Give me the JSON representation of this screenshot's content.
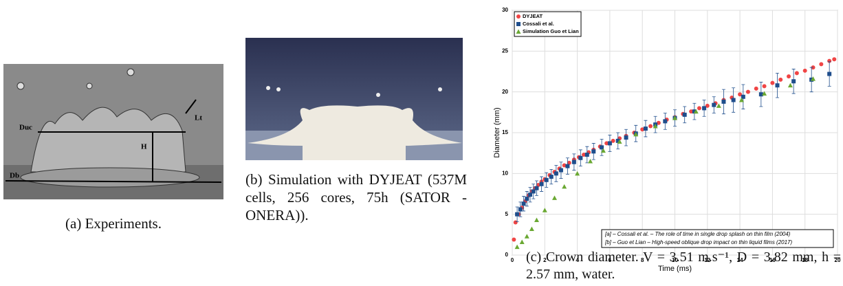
{
  "figures": [
    {
      "caption": "(a) Experiments.",
      "labels": [
        "Duc",
        "H",
        "Lt",
        "Db"
      ]
    },
    {
      "caption": "(b) Simulation with DYJEAT (537M cells, 256 cores, 75h (SATOR - ONERA))."
    },
    {
      "caption": "(c) Crown diameter. V = 3.51 m.s⁻¹, D = 3.82 mm, h = 2.57 mm, water."
    }
  ],
  "chart_data": {
    "type": "scatter",
    "xlabel": "Time (ms)",
    "ylabel": "Diameter (mm)",
    "xlim": [
      0,
      20
    ],
    "ylim": [
      0,
      30
    ],
    "xticks": [
      0,
      2,
      4,
      6,
      8,
      10,
      12,
      14,
      16,
      18,
      20
    ],
    "yticks": [
      0,
      5,
      10,
      15,
      20,
      25,
      30
    ],
    "grid": true,
    "legend": "upper left",
    "annotations": [
      "[a] – Cossali et al. – The role of time in single drop splash on thin film (2004)",
      "[b] – Guo et Lian – High-speed oblique drop impact on thin liquid films (2017)"
    ],
    "series": [
      {
        "name": "DYJEAT",
        "color": "#f04545",
        "marker": "circle",
        "x": [
          0.1,
          0.2,
          0.4,
          0.6,
          0.8,
          1.0,
          1.2,
          1.4,
          1.6,
          1.8,
          2.0,
          2.3,
          2.6,
          2.9,
          3.2,
          3.5,
          3.8,
          4.1,
          4.4,
          4.7,
          5.0,
          5.4,
          5.8,
          6.2,
          6.6,
          7.0,
          7.5,
          8.0,
          8.5,
          9.0,
          9.5,
          10.0,
          10.5,
          11.0,
          11.5,
          12.0,
          12.5,
          13.0,
          13.5,
          14.0,
          14.5,
          15.0,
          15.5,
          16.0,
          16.5,
          17.0,
          17.5,
          18.0,
          18.5,
          19.0,
          19.5,
          19.8
        ],
        "values": [
          1.9,
          4.0,
          5.0,
          5.8,
          6.6,
          7.3,
          7.8,
          8.2,
          8.6,
          9.0,
          9.3,
          9.8,
          10.2,
          10.6,
          11.0,
          11.3,
          11.7,
          12.0,
          12.3,
          12.6,
          12.9,
          13.3,
          13.7,
          14.0,
          14.3,
          14.6,
          15.0,
          15.4,
          15.8,
          16.2,
          16.6,
          16.9,
          17.3,
          17.6,
          18.0,
          18.3,
          18.6,
          19.0,
          19.3,
          19.7,
          20.0,
          20.4,
          20.7,
          21.1,
          21.5,
          21.9,
          22.3,
          22.6,
          23.0,
          23.4,
          23.8,
          24.0
        ]
      },
      {
        "name": "Cossali et al.",
        "color": "#1f4e8c",
        "marker": "square",
        "x": [
          0.3,
          0.5,
          0.7,
          0.9,
          1.1,
          1.3,
          1.5,
          1.8,
          2.1,
          2.4,
          2.7,
          3.0,
          3.4,
          3.8,
          4.2,
          4.6,
          5.0,
          5.5,
          6.0,
          6.5,
          7.0,
          7.6,
          8.2,
          8.8,
          9.4,
          10.0,
          10.6,
          11.2,
          11.8,
          12.4,
          13.0,
          13.6,
          14.2,
          15.3,
          16.3,
          17.3,
          18.4,
          19.5
        ],
        "values": [
          5.0,
          5.6,
          6.3,
          6.9,
          7.4,
          7.8,
          8.2,
          8.7,
          9.2,
          9.6,
          10.0,
          10.4,
          10.9,
          11.4,
          11.9,
          12.3,
          12.7,
          13.2,
          13.7,
          14.0,
          14.4,
          14.9,
          15.5,
          16.0,
          16.4,
          16.8,
          17.2,
          17.6,
          18.0,
          18.4,
          18.8,
          19.0,
          19.4,
          19.7,
          20.8,
          21.3,
          21.5,
          22.2
        ],
        "errors": [
          0.9,
          0.9,
          0.9,
          0.9,
          0.9,
          0.9,
          0.9,
          0.9,
          0.9,
          0.9,
          1.0,
          1.0,
          1.0,
          1.0,
          1.0,
          1.0,
          1.0,
          1.0,
          1.0,
          1.0,
          1.0,
          1.0,
          1.0,
          1.0,
          1.0,
          1.0,
          1.0,
          1.0,
          1.0,
          1.0,
          1.5,
          1.5,
          1.5,
          1.5,
          1.5,
          1.5,
          1.5,
          1.5
        ]
      },
      {
        "name": "Simulation Guo et Lian",
        "color": "#6aa832",
        "marker": "triangle",
        "x": [
          0.3,
          0.6,
          0.9,
          1.2,
          1.5,
          2.0,
          2.6,
          3.2,
          4.0,
          4.8,
          5.6,
          6.6,
          7.6,
          8.8,
          10.0,
          11.3,
          12.7,
          14.1,
          15.5,
          17.1,
          18.5
        ],
        "values": [
          1.0,
          1.6,
          2.3,
          3.2,
          4.3,
          5.5,
          7.0,
          8.4,
          10.0,
          11.5,
          12.8,
          13.9,
          14.8,
          15.8,
          16.8,
          17.6,
          18.3,
          19.0,
          19.8,
          20.8,
          21.6
        ]
      }
    ]
  }
}
